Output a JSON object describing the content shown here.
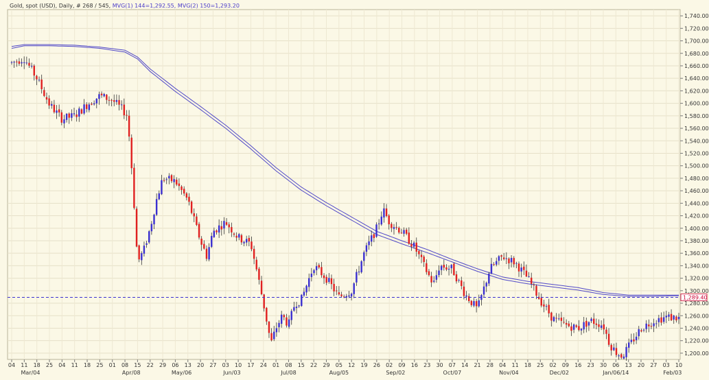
{
  "header": {
    "instrument": "Gold, spot (USD), Daily, # 268 / 545,",
    "ma1": "MVG(1) 144=1,292.55,",
    "ma2": "MVG(2) 150=1,293.20"
  },
  "chart_data": {
    "type": "candlestick",
    "title": "",
    "y_axis": {
      "position": "right",
      "min": 1190,
      "max": 1750,
      "ticks": [
        1200,
        1220,
        1240,
        1260,
        1280,
        1300,
        1320,
        1340,
        1360,
        1380,
        1400,
        1420,
        1440,
        1460,
        1480,
        1500,
        1520,
        1540,
        1560,
        1580,
        1600,
        1620,
        1640,
        1660,
        1680,
        1700,
        1720,
        1740
      ],
      "tick_labels": [
        "1,200.00",
        "1,220.00",
        "1,240.00",
        "1,260.00",
        "1,280.00",
        "1,300.00",
        "1,320.00",
        "1,340.00",
        "1,360.00",
        "1,380.00",
        "1,400.00",
        "1,420.00",
        "1,440.00",
        "1,460.00",
        "1,480.00",
        "1,500.00",
        "1,520.00",
        "1,540.00",
        "1,560.00",
        "1,580.00",
        "1,600.00",
        "1,620.00",
        "1,640.00",
        "1,660.00",
        "1,680.00",
        "1,700.00",
        "1,720.00",
        "1,740.00"
      ]
    },
    "x_axis": {
      "day_labels": [
        "04",
        "11",
        "18",
        "25",
        "04",
        "11",
        "18",
        "25",
        "01",
        "08",
        "15",
        "22",
        "29",
        "06",
        "13",
        "20",
        "27",
        "03",
        "10",
        "17",
        "24",
        "01",
        "08",
        "15",
        "22",
        "29",
        "05",
        "12",
        "19",
        "26",
        "02",
        "09",
        "16",
        "23",
        "30",
        "07",
        "14",
        "21",
        "28",
        "04",
        "11",
        "18",
        "25",
        "02",
        "09",
        "16",
        "23",
        "30",
        "06",
        "13",
        "20",
        "27",
        "03",
        "10"
      ],
      "month_labels": [
        {
          "label": "Mar/04",
          "index": 1.5
        },
        {
          "label": "Apr/08",
          "index": 9.5
        },
        {
          "label": "May/06",
          "index": 13.5
        },
        {
          "label": "Jun/03",
          "index": 17.5
        },
        {
          "label": "Jul/08",
          "index": 22
        },
        {
          "label": "Aug/05",
          "index": 26
        },
        {
          "label": "Sep/02",
          "index": 30.5
        },
        {
          "label": "Oct/07",
          "index": 35
        },
        {
          "label": "Nov/04",
          "index": 39.5
        },
        {
          "label": "Dec/02",
          "index": 43.5
        },
        {
          "label": "Jan/06/14",
          "index": 48
        },
        {
          "label": "Feb/03",
          "index": 52.5
        }
      ]
    },
    "current_price": {
      "value": 1289.4,
      "label": "1,289.40"
    },
    "up_color": "#3a2fd0",
    "down_color": "#e02020",
    "ma_color": "#5048c8",
    "price_path": [
      [
        0,
        1665
      ],
      [
        1,
        1672
      ],
      [
        2,
        1640
      ],
      [
        3,
        1598
      ],
      [
        4,
        1575
      ],
      [
        5,
        1580
      ],
      [
        6,
        1598
      ],
      [
        7,
        1612
      ],
      [
        8,
        1605
      ],
      [
        8.8,
        1590
      ],
      [
        9.2,
        1580
      ],
      [
        9.6,
        1480
      ],
      [
        10,
        1345
      ],
      [
        10.5,
        1365
      ],
      [
        11,
        1400
      ],
      [
        11.5,
        1445
      ],
      [
        12,
        1480
      ],
      [
        13,
        1475
      ],
      [
        14,
        1445
      ],
      [
        15,
        1380
      ],
      [
        15.5,
        1355
      ],
      [
        16,
        1395
      ],
      [
        17,
        1410
      ],
      [
        18,
        1385
      ],
      [
        19,
        1375
      ],
      [
        19.5,
        1330
      ],
      [
        20,
        1280
      ],
      [
        20.6,
        1215
      ],
      [
        21,
        1240
      ],
      [
        21.5,
        1260
      ],
      [
        22,
        1245
      ],
      [
        22.5,
        1280
      ],
      [
        23,
        1285
      ],
      [
        24,
        1340
      ],
      [
        25,
        1320
      ],
      [
        26,
        1290
      ],
      [
        27,
        1300
      ],
      [
        28,
        1360
      ],
      [
        29,
        1400
      ],
      [
        29.5,
        1430
      ],
      [
        30,
        1410
      ],
      [
        31,
        1395
      ],
      [
        32,
        1370
      ],
      [
        33,
        1330
      ],
      [
        33.5,
        1310
      ],
      [
        34,
        1340
      ],
      [
        35,
        1335
      ],
      [
        36,
        1295
      ],
      [
        37,
        1270
      ],
      [
        38,
        1335
      ],
      [
        39,
        1355
      ],
      [
        40,
        1345
      ],
      [
        41,
        1320
      ],
      [
        42,
        1285
      ],
      [
        43,
        1255
      ],
      [
        44,
        1245
      ],
      [
        45,
        1240
      ],
      [
        46,
        1252
      ],
      [
        47,
        1245
      ],
      [
        47.5,
        1215
      ],
      [
        48,
        1202
      ],
      [
        48.5,
        1195
      ],
      [
        49,
        1210
      ],
      [
        50,
        1240
      ],
      [
        51,
        1252
      ],
      [
        52,
        1258
      ],
      [
        53,
        1256
      ],
      [
        53.6,
        1263
      ],
      [
        54,
        1288
      ]
    ],
    "moving_averages": [
      {
        "name": "MVG(1) 144",
        "points": [
          [
            0,
            1691
          ],
          [
            1,
            1694
          ],
          [
            3,
            1694
          ],
          [
            5,
            1693
          ],
          [
            7,
            1690
          ],
          [
            9,
            1685
          ],
          [
            10,
            1674
          ],
          [
            11,
            1655
          ],
          [
            13,
            1624
          ],
          [
            15,
            1595
          ],
          [
            17,
            1565
          ],
          [
            19,
            1532
          ],
          [
            21,
            1497
          ],
          [
            23,
            1466
          ],
          [
            25,
            1441
          ],
          [
            27,
            1418
          ],
          [
            29,
            1395
          ],
          [
            31,
            1380
          ],
          [
            33,
            1366
          ],
          [
            35,
            1350
          ],
          [
            37,
            1335
          ],
          [
            39,
            1322
          ],
          [
            41,
            1315
          ],
          [
            43,
            1310
          ],
          [
            45,
            1305
          ],
          [
            47,
            1297
          ],
          [
            49,
            1293
          ],
          [
            51,
            1293
          ],
          [
            53,
            1293
          ],
          [
            54,
            1293
          ]
        ]
      },
      {
        "name": "MVG(2) 150",
        "points": [
          [
            0,
            1688
          ],
          [
            1,
            1692
          ],
          [
            3,
            1692
          ],
          [
            5,
            1691
          ],
          [
            7,
            1688
          ],
          [
            9,
            1682
          ],
          [
            10,
            1671
          ],
          [
            11,
            1651
          ],
          [
            13,
            1619
          ],
          [
            15,
            1590
          ],
          [
            17,
            1560
          ],
          [
            19,
            1527
          ],
          [
            21,
            1492
          ],
          [
            23,
            1461
          ],
          [
            25,
            1436
          ],
          [
            27,
            1413
          ],
          [
            29,
            1390
          ],
          [
            31,
            1375
          ],
          [
            33,
            1361
          ],
          [
            35,
            1346
          ],
          [
            37,
            1331
          ],
          [
            39,
            1318
          ],
          [
            41,
            1311
          ],
          [
            43,
            1306
          ],
          [
            45,
            1301
          ],
          [
            47,
            1294
          ],
          [
            49,
            1291
          ],
          [
            51,
            1291
          ],
          [
            53,
            1292
          ],
          [
            54,
            1293
          ]
        ]
      }
    ],
    "grid": true,
    "legend": "none"
  }
}
